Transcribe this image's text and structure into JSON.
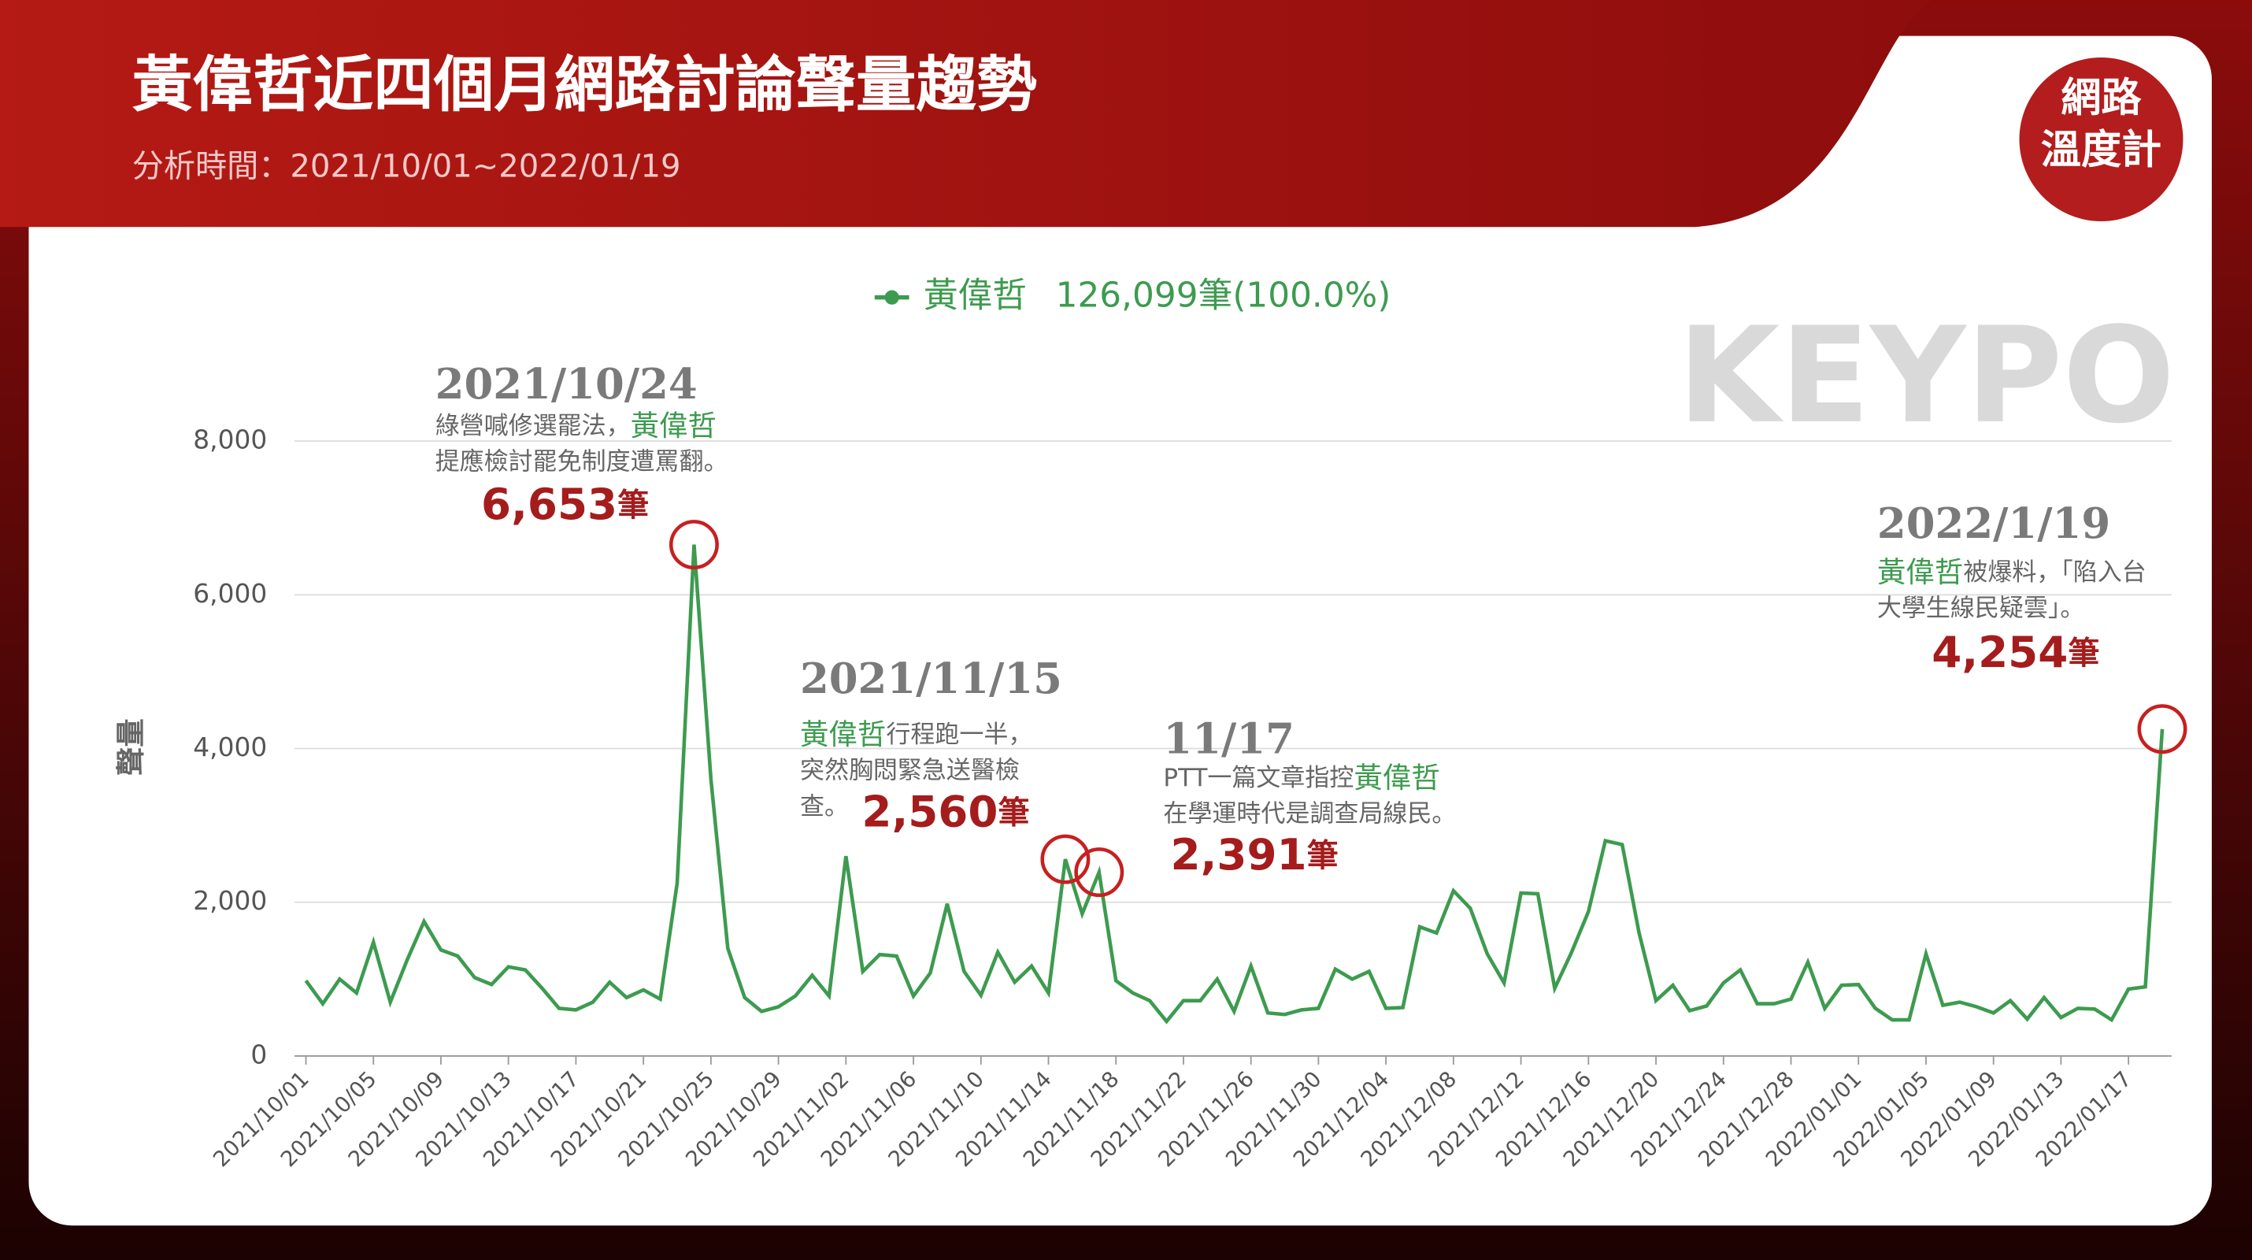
{
  "header": {
    "title": "黃偉哲近四個月網路討論聲量趨勢",
    "subtitle": "分析時間：2021/10/01~2022/01/19",
    "logo": [
      "網路",
      "溫度計"
    ],
    "watermark": "KEYPO"
  },
  "chart_data": {
    "type": "line",
    "y_label": "聲量",
    "categories": [
      "2021/10/01",
      null,
      null,
      null,
      "2021/10/05",
      null,
      null,
      null,
      "2021/10/09",
      null,
      null,
      null,
      "2021/10/13",
      null,
      null,
      null,
      "2021/10/17",
      null,
      null,
      null,
      "2021/10/21",
      null,
      null,
      null,
      "2021/10/25",
      null,
      null,
      null,
      "2021/10/29",
      null,
      null,
      null,
      "2021/11/02",
      null,
      null,
      null,
      "2021/11/06",
      null,
      null,
      null,
      "2021/11/10",
      null,
      null,
      null,
      "2021/11/14",
      null,
      null,
      null,
      "2021/11/18",
      null,
      null,
      null,
      "2021/11/22",
      null,
      null,
      null,
      "2021/11/26",
      null,
      null,
      null,
      "2021/11/30",
      null,
      null,
      null,
      "2021/12/04",
      null,
      null,
      null,
      "2021/12/08",
      null,
      null,
      null,
      "2021/12/12",
      null,
      null,
      null,
      "2021/12/16",
      null,
      null,
      null,
      "2021/12/20",
      null,
      null,
      null,
      "2021/12/24",
      null,
      null,
      null,
      "2021/12/28",
      null,
      null,
      null,
      "2022/01/01",
      null,
      null,
      null,
      "2022/01/05",
      null,
      null,
      null,
      "2022/01/09",
      null,
      null,
      null,
      "2022/01/13",
      null,
      null,
      null,
      "2022/01/17",
      null,
      null
    ],
    "series": [
      {
        "name": "黃偉哲",
        "total_label": "126,099筆(100.0%)",
        "color": "#3d9b4f",
        "values": [
          980,
          680,
          1000,
          820,
          1480,
          700,
          1250,
          1750,
          1380,
          1300,
          1020,
          930,
          1160,
          1120,
          880,
          620,
          600,
          700,
          960,
          760,
          860,
          740,
          2250,
          6653,
          3600,
          1400,
          760,
          580,
          640,
          780,
          1050,
          780,
          2600,
          1100,
          1320,
          1300,
          780,
          1080,
          1980,
          1100,
          790,
          1350,
          960,
          1170,
          820,
          2560,
          1850,
          2391,
          980,
          820,
          720,
          450,
          720,
          720,
          1000,
          580,
          1170,
          560,
          540,
          600,
          620,
          1130,
          1000,
          1100,
          620,
          630,
          1680,
          1600,
          2150,
          1920,
          1330,
          950,
          2120,
          2110,
          880,
          1350,
          1880,
          2800,
          2750,
          1600,
          720,
          920,
          590,
          650,
          950,
          1120,
          680,
          680,
          740,
          1220,
          620,
          920,
          930,
          620,
          470,
          470,
          1330,
          660,
          700,
          640,
          560,
          720,
          480,
          760,
          500,
          620,
          610,
          470,
          870,
          900,
          4254
        ]
      }
    ],
    "ylim": [
      0,
      8000
    ],
    "yticks": [
      0,
      {
        "value": 2000,
        "label": "2,000"
      },
      {
        "value": 4000,
        "label": "4,000"
      },
      {
        "value": 6000,
        "label": "6,000"
      },
      {
        "value": 8000,
        "label": "8,000"
      }
    ],
    "grid": true,
    "annotations": [
      {
        "date": "2021/10/24",
        "lines": [
          [
            {
              "text": "綠營喊修選罷法，"
            },
            {
              "text": "黃偉哲",
              "color": "#3d9b4f"
            }
          ],
          [
            {
              "text": "提應檢討罷免制度遭罵翻。"
            }
          ]
        ],
        "value": {
          "value": 6653,
          "label": "6,653"
        },
        "unit": "筆",
        "circle_color": "#c62020"
      },
      {
        "date": "2021/11/15",
        "lines": [
          [
            {
              "text": "黃偉哲",
              "color": "#3d9b4f"
            },
            {
              "text": "行程跑一半，"
            }
          ],
          [
            {
              "text": "突然胸悶緊急送醫檢"
            }
          ],
          [
            {
              "text": "查。"
            }
          ]
        ],
        "value": {
          "value": 2560,
          "label": "2,560"
        },
        "unit": "筆",
        "circle_color": "#c62020"
      },
      {
        "date": "11/17",
        "lines": [
          [
            {
              "text": "PTT一篇文章指控"
            },
            {
              "text": "黃偉哲",
              "color": "#3d9b4f"
            }
          ],
          [
            {
              "text": "在學運時代是調查局線民。"
            }
          ]
        ],
        "value": {
          "value": 2391,
          "label": "2,391"
        },
        "unit": "筆",
        "circle_color": "#c62020"
      },
      {
        "date": "2022/1/19",
        "lines": [
          [
            {
              "text": "黃偉哲",
              "color": "#3d9b4f"
            },
            {
              "text": "被爆料，「陷入台"
            }
          ],
          [
            {
              "text": "大學生線民疑雲」。"
            }
          ]
        ],
        "value": {
          "value": 4254,
          "label": "4,254"
        },
        "unit": "筆",
        "circle_color": "#c62020"
      }
    ]
  }
}
